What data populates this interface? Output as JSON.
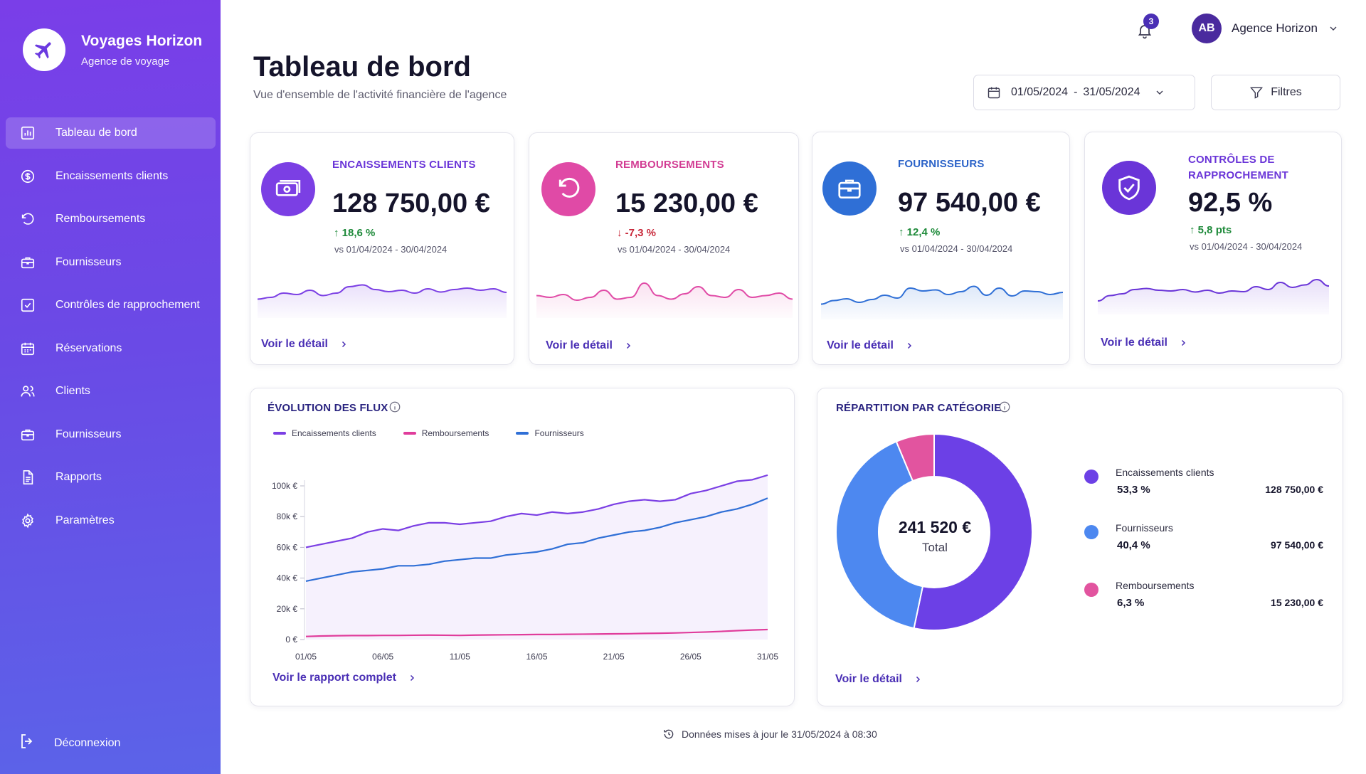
{
  "brand": {
    "name": "Voyages Horizon",
    "subtitle": "Agence de voyage"
  },
  "nav": [
    {
      "label": "Tableau de bord",
      "icon": "chart-bar-icon",
      "active": true
    },
    {
      "label": "Encaissements clients",
      "icon": "dollar-circle-icon"
    },
    {
      "label": "Remboursements",
      "icon": "undo-arrow-icon"
    },
    {
      "label": "Fournisseurs",
      "icon": "briefcase-icon"
    },
    {
      "label": "Contrôles de rapprochement",
      "icon": "check-square-icon"
    },
    {
      "label": "Réservations",
      "icon": "calendar-icon"
    },
    {
      "label": "Clients",
      "icon": "users-icon"
    },
    {
      "label": "Fournisseurs",
      "icon": "briefcase-icon"
    },
    {
      "label": "Rapports",
      "icon": "document-icon"
    },
    {
      "label": "Paramètres",
      "icon": "gear-icon"
    }
  ],
  "logout": {
    "label": "Déconnexion"
  },
  "topbar": {
    "notifications_count": "3",
    "user_initials": "AB",
    "user_name": "Agence Horizon"
  },
  "header": {
    "title": "Tableau de bord",
    "subtitle": "Vue d'ensemble de l'activité financière de l'agence",
    "date_start": "01/05/2024",
    "date_sep": "-",
    "date_end": "31/05/2024",
    "filters_label": "Filtres"
  },
  "kpis": [
    {
      "label": "ENCAISSEMENTS CLIENTS",
      "value": "128 750,00 €",
      "delta": "18,6 %",
      "trend": "up",
      "vs": "vs 01/04/2024 - 30/04/2024",
      "link": "Voir le détail",
      "color": "#7b3fe4",
      "icon": "cash-icon",
      "spark": [
        0.45,
        0.5,
        0.62,
        0.58,
        0.7,
        0.55,
        0.62,
        0.8,
        0.85,
        0.72,
        0.66,
        0.7,
        0.62,
        0.74,
        0.65,
        0.72,
        0.76,
        0.7,
        0.74,
        0.64
      ]
    },
    {
      "label": "REMBOURSEMENTS",
      "value": "15 230,00 €",
      "delta": "-7,3 %",
      "trend": "down",
      "vs": "vs 01/04/2024 - 30/04/2024",
      "link": "Voir le détail",
      "color": "#e04aa6",
      "icon": "refund-arrow-icon",
      "spark": [
        0.55,
        0.5,
        0.58,
        0.42,
        0.5,
        0.7,
        0.45,
        0.5,
        0.9,
        0.55,
        0.45,
        0.6,
        0.8,
        0.55,
        0.5,
        0.72,
        0.5,
        0.55,
        0.62,
        0.45
      ]
    },
    {
      "label": "FOURNISSEURS",
      "value": "97 540,00 €",
      "delta": "12,4 %",
      "trend": "up",
      "vs": "vs 01/04/2024 - 30/04/2024",
      "link": "Voir le détail",
      "color": "#2f6fd6",
      "icon": "briefcase-icon",
      "spark": [
        0.35,
        0.45,
        0.5,
        0.4,
        0.48,
        0.6,
        0.52,
        0.8,
        0.72,
        0.75,
        0.62,
        0.7,
        0.85,
        0.6,
        0.8,
        0.58,
        0.72,
        0.7,
        0.62,
        0.68
      ]
    },
    {
      "label": "CONTRÔLES DE RAPPROCHEMENT",
      "value": "92,5 %",
      "delta": "5,8 pts",
      "trend": "up",
      "vs": "vs 01/04/2024 - 30/04/2024",
      "link": "Voir le détail",
      "color": "#6a35d8",
      "icon": "shield-check-icon",
      "spark": [
        0.3,
        0.45,
        0.5,
        0.62,
        0.65,
        0.6,
        0.58,
        0.62,
        0.55,
        0.6,
        0.52,
        0.58,
        0.56,
        0.7,
        0.62,
        0.82,
        0.68,
        0.75,
        0.9,
        0.72
      ]
    }
  ],
  "flux": {
    "title": "ÉVOLUTION DES FLUX",
    "link": "Voir le rapport complet"
  },
  "chart_data": {
    "type": "line",
    "x": [
      "01/05",
      "02/05",
      "03/05",
      "04/05",
      "05/05",
      "06/05",
      "07/05",
      "08/05",
      "09/05",
      "10/05",
      "11/05",
      "12/05",
      "13/05",
      "14/05",
      "15/05",
      "16/05",
      "17/05",
      "18/05",
      "19/05",
      "20/05",
      "21/05",
      "22/05",
      "23/05",
      "24/05",
      "25/05",
      "26/05",
      "27/05",
      "28/05",
      "29/05",
      "30/05",
      "31/05"
    ],
    "xticks": [
      "01/05",
      "06/05",
      "11/05",
      "16/05",
      "21/05",
      "26/05",
      "31/05"
    ],
    "yticks": [
      "0 €",
      "20k €",
      "40k €",
      "60k €",
      "80k €",
      "100k €"
    ],
    "ylim": [
      0,
      100000
    ],
    "series": [
      {
        "name": "Encaissements clients",
        "color": "#7b3fe4",
        "values": [
          60000,
          62000,
          64000,
          66000,
          70000,
          72000,
          71000,
          74000,
          76000,
          76000,
          75000,
          76000,
          77000,
          80000,
          82000,
          81000,
          83000,
          82000,
          83000,
          85000,
          88000,
          90000,
          91000,
          90000,
          91000,
          95000,
          97000,
          100000,
          103000,
          104000,
          107000
        ]
      },
      {
        "name": "Remboursements",
        "color": "#e03c9b",
        "values": [
          2000,
          2300,
          2500,
          2600,
          2600,
          2700,
          2700,
          2800,
          2900,
          2800,
          2700,
          2900,
          3000,
          3100,
          3200,
          3300,
          3300,
          3400,
          3500,
          3600,
          3700,
          3800,
          4000,
          4100,
          4300,
          4600,
          4900,
          5300,
          5800,
          6200,
          6500
        ]
      },
      {
        "name": "Fournisseurs",
        "color": "#2f6fd6",
        "values": [
          38000,
          40000,
          42000,
          44000,
          45000,
          46000,
          48000,
          48000,
          49000,
          51000,
          52000,
          53000,
          53000,
          55000,
          56000,
          57000,
          59000,
          62000,
          63000,
          66000,
          68000,
          70000,
          71000,
          73000,
          76000,
          78000,
          80000,
          83000,
          85000,
          88000,
          92000
        ]
      }
    ]
  },
  "repartition": {
    "title": "RÉPARTITION PAR CATÉGORIE",
    "total": "241 520 €",
    "total_label": "Total",
    "link": "Voir le détail",
    "items": [
      {
        "name": "Encaissements clients",
        "pct": "53,3 %",
        "share": 0.533,
        "amount": "128 750,00 €",
        "color": "#6c40e6"
      },
      {
        "name": "Fournisseurs",
        "pct": "40,4 %",
        "share": 0.404,
        "amount": "97 540,00 €",
        "color": "#4d88f0"
      },
      {
        "name": "Remboursements",
        "pct": "6,3 %",
        "share": 0.063,
        "amount": "15 230,00 €",
        "color": "#e2549f"
      }
    ]
  },
  "footer": {
    "updated": "Données mises à jour le 31/05/2024 à 08:30"
  }
}
